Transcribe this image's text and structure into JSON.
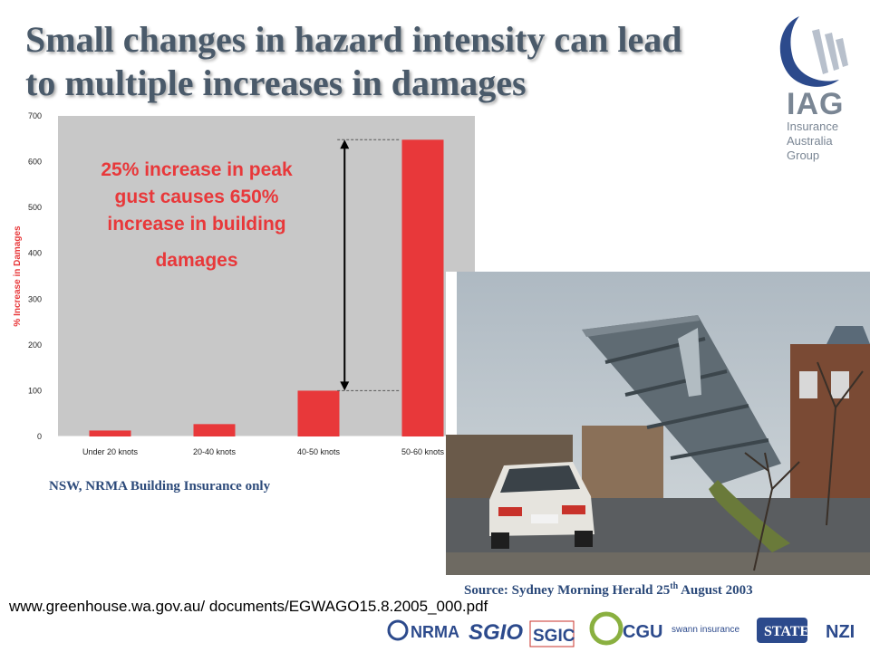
{
  "slide": {
    "title_line1": "Small changes in hazard intensity can lead",
    "title_line2": "to multiple increases in damages",
    "note": "NSW, NRMA Building Insurance only",
    "source_prefix": "Source: Sydney Morning Herald 25",
    "source_sup": "th",
    "source_suffix": " August 2003",
    "url": "www.greenhouse.wa.gov.au/ documents/EGWAGO15.8.2005_000.pdf"
  },
  "logo": {
    "word": "IAG",
    "sub1": "Insurance",
    "sub2": "Australia",
    "sub3": "Group"
  },
  "brands": [
    "NRMA",
    "SGIO",
    "SGIC",
    "CGU",
    "swann insurance",
    "STATE",
    "NZI"
  ],
  "colors": {
    "bar": "#e8383a",
    "plot_bg": "#c8c8c8",
    "title": "#4a5a6a",
    "annotation": "#e8383a",
    "navy": "#2c4a7a"
  },
  "chart_data": {
    "type": "bar",
    "categories": [
      "Under 20 knots",
      "20-40 knots",
      "40-50 knots",
      "50-60 knots"
    ],
    "values": [
      13,
      27,
      100,
      648
    ],
    "ylabel": "% Increase in Damages",
    "xlabel": "",
    "ylim": [
      0,
      700
    ],
    "yticks": [
      0,
      100,
      200,
      300,
      400,
      500,
      600,
      700
    ],
    "grid": false,
    "annotation_lines": [
      "25% increase in peak",
      "gust causes 650%",
      "increase in building",
      "damages"
    ]
  }
}
